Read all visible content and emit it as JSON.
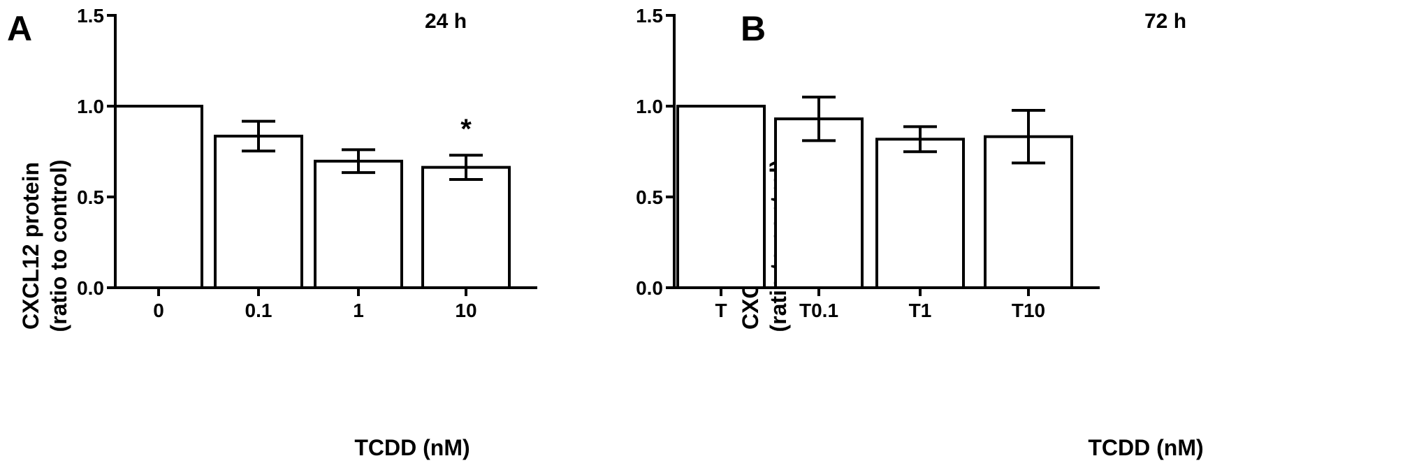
{
  "chart_data": [
    {
      "type": "bar",
      "panel_label": "A",
      "title": "24 h",
      "xlabel": "TCDD (nM)",
      "ylabel_line1": "CXCL12 protein",
      "ylabel_line2": "(ratio to control)",
      "ylim": [
        0,
        1.5
      ],
      "yticks": [
        "0.0",
        "0.5",
        "1.0",
        "1.5"
      ],
      "yticks_values": [
        0,
        0.5,
        1.0,
        1.5
      ],
      "categories": [
        "0",
        "0.1",
        "1",
        "10"
      ],
      "values": [
        1.0,
        0.835,
        0.697,
        0.663
      ],
      "error": [
        0.0,
        0.082,
        0.063,
        0.067
      ],
      "annotations": [
        "",
        "",
        "",
        "*"
      ],
      "bar_fill": "#ffffff",
      "stroke": "#000000"
    },
    {
      "type": "bar",
      "panel_label": "B",
      "title": "72 h",
      "xlabel": "TCDD (nM)",
      "ylabel_line1": "CXCL12 protein",
      "ylabel_line2": "(ratio to control)",
      "ylim": [
        0,
        1.5
      ],
      "yticks": [
        "0.0",
        "0.5",
        "1.0",
        "1.5"
      ],
      "yticks_values": [
        0,
        0.5,
        1.0,
        1.5
      ],
      "categories": [
        "T",
        "T0.1",
        "T1",
        "T10"
      ],
      "values": [
        1.0,
        0.93,
        0.818,
        0.832
      ],
      "error": [
        0.0,
        0.12,
        0.069,
        0.145
      ],
      "annotations": [
        "",
        "",
        "",
        ""
      ],
      "bar_fill": "#ffffff",
      "stroke": "#000000"
    }
  ]
}
